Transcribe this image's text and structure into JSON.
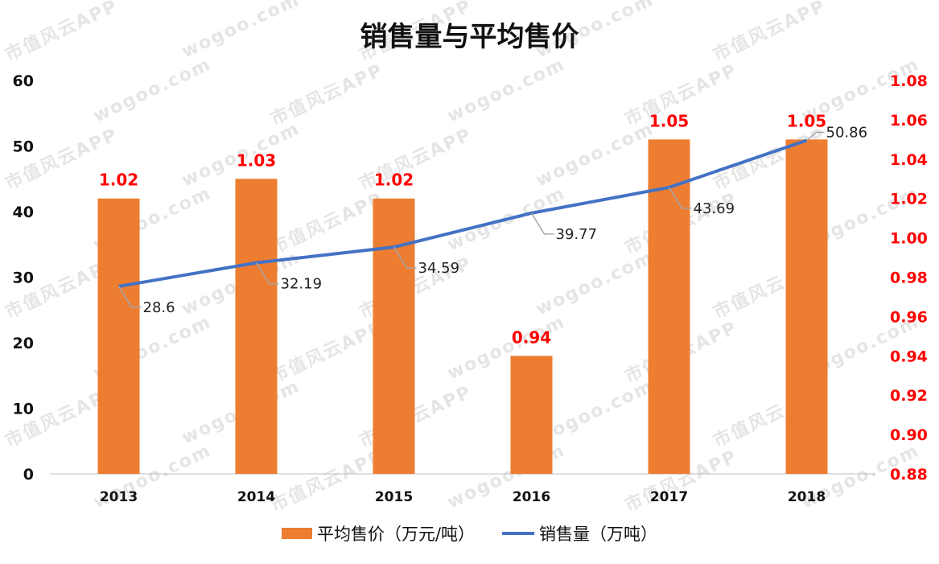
{
  "watermark": {
    "text_a": "wogoo.com",
    "text_b": "市值风云APP"
  },
  "chart_data": {
    "type": "bar+line",
    "title": "销售量与平均售价",
    "categories": [
      "2013",
      "2014",
      "2015",
      "2016",
      "2017",
      "2018"
    ],
    "series": [
      {
        "name": "平均售价（万元/吨）",
        "type": "bar",
        "axis": "right",
        "color": "#ED7D31",
        "label_color": "#FF0000",
        "values": [
          1.02,
          1.03,
          1.02,
          0.94,
          1.05,
          1.05
        ],
        "labels": [
          "1.02",
          "1.03",
          "1.02",
          "0.94",
          "1.05",
          "1.05"
        ]
      },
      {
        "name": "销售量（万吨）",
        "type": "line",
        "axis": "left",
        "color": "#4472C4",
        "values": [
          28.6,
          32.19,
          34.59,
          39.77,
          43.69,
          50.86
        ],
        "labels": [
          "28.6",
          "32.19",
          "34.59",
          "39.77",
          "43.69",
          "50.86"
        ]
      }
    ],
    "left_axis": {
      "ylim": [
        0,
        60
      ],
      "ticks": [
        "0",
        "10",
        "20",
        "30",
        "40",
        "50",
        "60"
      ]
    },
    "right_axis": {
      "ylim": [
        0.88,
        1.08
      ],
      "ticks": [
        "0.88",
        "0.90",
        "0.92",
        "0.94",
        "0.96",
        "0.98",
        "1.00",
        "1.02",
        "1.04",
        "1.06",
        "1.08"
      ],
      "color": "#FF0000"
    },
    "grid": false,
    "legend": "bottom"
  }
}
